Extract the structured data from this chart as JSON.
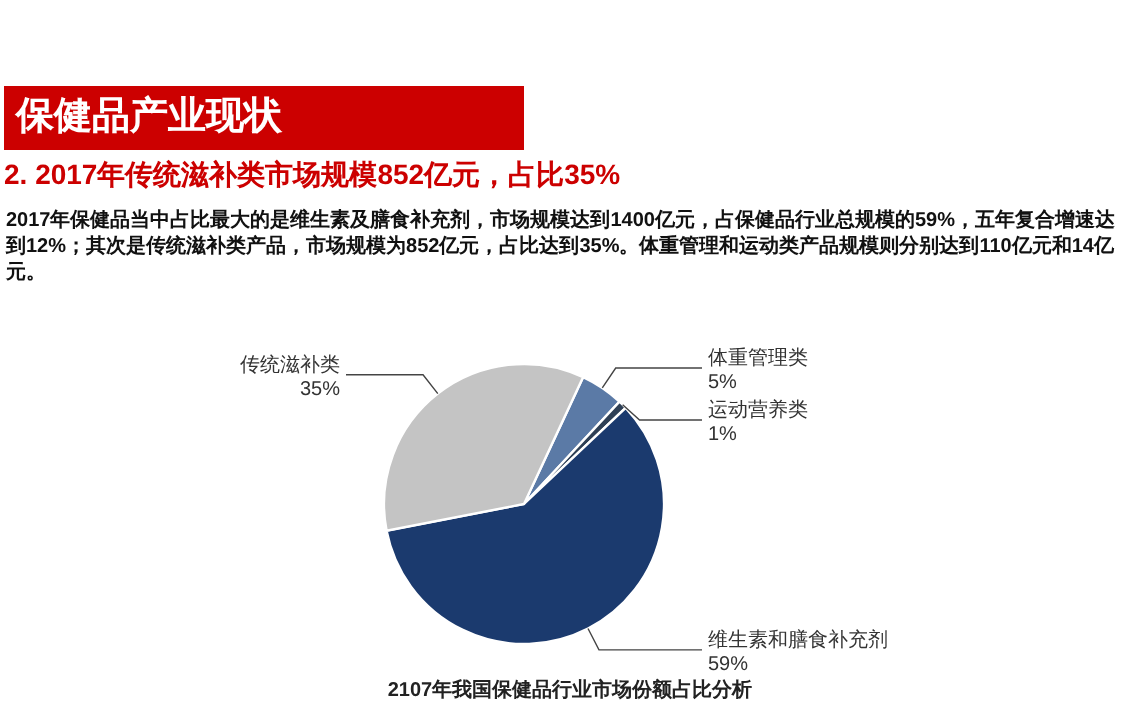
{
  "chart_data": {
    "type": "pie",
    "title": "保健品产业现状",
    "subtitle": "2. 2017年传统滋补类市场规模852亿元，占比35%",
    "categories": [
      "体重管理类",
      "运动营养类",
      "维生素和膳食补充剂",
      "传统滋补类"
    ],
    "values": [
      5,
      1,
      59,
      35
    ],
    "colors": [
      "#5b7aa6",
      "#2e3f55",
      "#1b3a6e",
      "#c4c4c4"
    ],
    "value_labels": [
      "5%",
      "1%",
      "59%",
      "35%"
    ],
    "annotations": [
      "2017年保健品当中占比最大的是维生素及膳食补充剂，市场规模达到1400亿元，占保健品行业总规模的59%，五年复合增速达到12%；其次是传统滋补类产品，市场规模为852亿元，占比达到35%。体重管理和运动类产品规模则分别达到110亿元和14亿元。",
      "2107年我国保健品行业市场份额占比分析"
    ]
  }
}
